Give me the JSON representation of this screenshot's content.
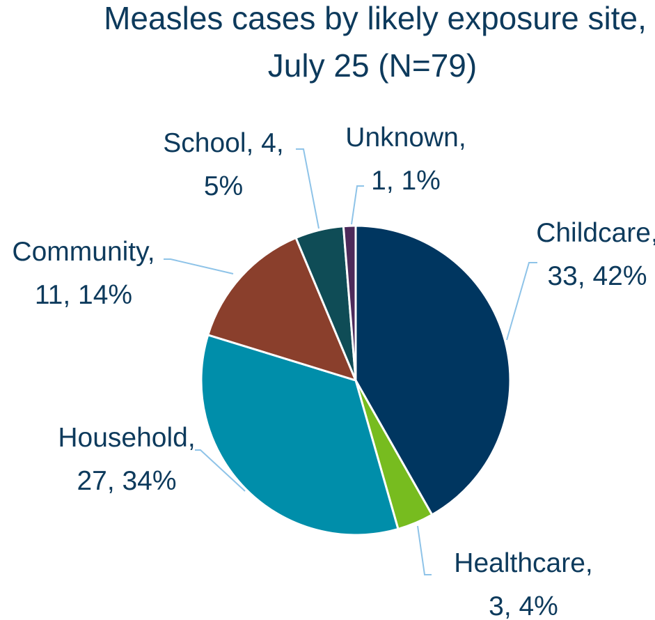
{
  "chart_data": {
    "type": "pie",
    "title_lines": [
      "Measles cases by likely exposure site,",
      "July 25 (N=79)"
    ],
    "slices": [
      {
        "name": "Childcare",
        "value": 33,
        "percent": "42%",
        "label_lines": [
          "Childcare,",
          "33, 42%"
        ],
        "color": "#003660"
      },
      {
        "name": "Healthcare",
        "value": 3,
        "percent": "4%",
        "label_lines": [
          "Healthcare,",
          "3, 4%"
        ],
        "color": "#77bc1f"
      },
      {
        "name": "Household",
        "value": 27,
        "percent": "34%",
        "label_lines": [
          "Household,",
          "27, 34%"
        ],
        "color": "#008eaa"
      },
      {
        "name": "Community",
        "value": 11,
        "percent": "14%",
        "label_lines": [
          "Community,",
          "11, 14%"
        ],
        "color": "#8a3f2c"
      },
      {
        "name": "School",
        "value": 4,
        "percent": "5%",
        "label_lines": [
          "School, 4,",
          "5%"
        ],
        "color": "#0f4c56"
      },
      {
        "name": "Unknown",
        "value": 1,
        "percent": "1%",
        "label_lines": [
          "Unknown,",
          "1, 1%"
        ],
        "color": "#4d2a5a"
      }
    ]
  }
}
